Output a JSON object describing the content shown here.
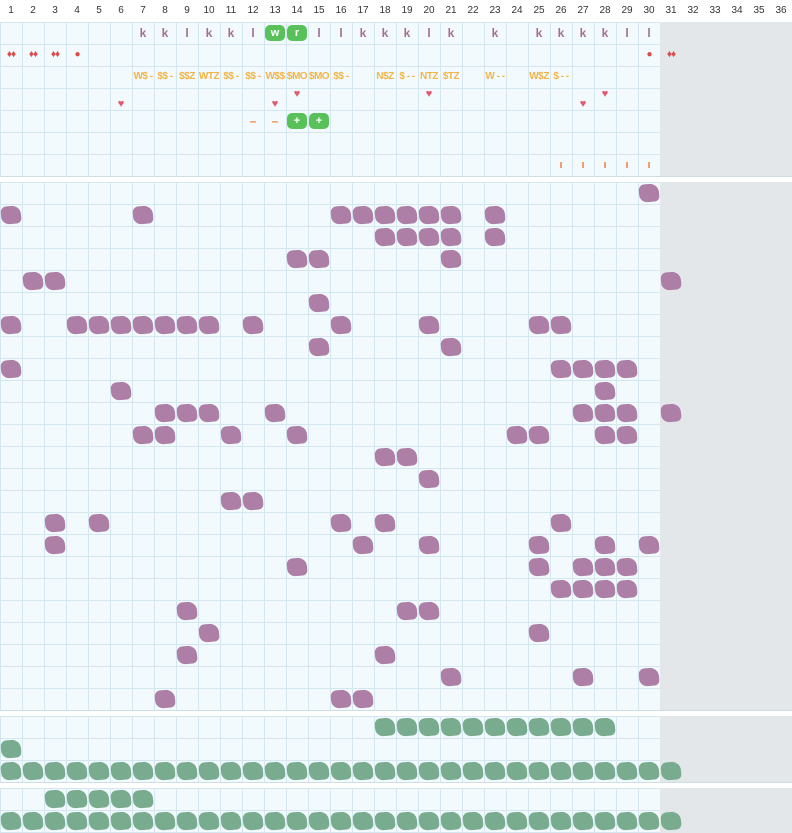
{
  "days": [
    "1",
    "2",
    "3",
    "4",
    "5",
    "6",
    "7",
    "8",
    "9",
    "10",
    "11",
    "12",
    "13",
    "14",
    "15",
    "16",
    "17",
    "18",
    "19",
    "20",
    "21",
    "22",
    "23",
    "24",
    "25",
    "26",
    "27",
    "28",
    "29",
    "30",
    "31",
    "32",
    "33",
    "34",
    "35",
    "36"
  ],
  "current_day": "30",
  "colors": {
    "grid_background": "#f2fafe",
    "grid_line": "#d4e6ef",
    "future_shade": "#e3e7ea",
    "purple_entry": "#ad7ea6",
    "green_entry": "#79ab8f",
    "letter_mark": "#a3708f",
    "letter_tag": "#59c15a",
    "segment_mark": "#f2b446",
    "heart_mark": "#e05b6f",
    "dash_mark": "#f08246",
    "symbol_mark": "#dd4a4a"
  },
  "letters_row": [
    {
      "day": 7,
      "text": "k"
    },
    {
      "day": 8,
      "text": "k"
    },
    {
      "day": 9,
      "text": "l"
    },
    {
      "day": 10,
      "text": "k"
    },
    {
      "day": 11,
      "text": "k"
    },
    {
      "day": 12,
      "text": "l"
    },
    {
      "day": 13,
      "text": "w",
      "tag": true
    },
    {
      "day": 14,
      "text": "r",
      "tag": true
    },
    {
      "day": 15,
      "text": "l"
    },
    {
      "day": 16,
      "text": "l"
    },
    {
      "day": 17,
      "text": "k"
    },
    {
      "day": 18,
      "text": "k"
    },
    {
      "day": 19,
      "text": "k"
    },
    {
      "day": 20,
      "text": "l"
    },
    {
      "day": 21,
      "text": "k"
    },
    {
      "day": 23,
      "text": "k"
    },
    {
      "day": 25,
      "text": "k"
    },
    {
      "day": 26,
      "text": "k"
    },
    {
      "day": 27,
      "text": "k"
    },
    {
      "day": 28,
      "text": "k"
    },
    {
      "day": 29,
      "text": "l"
    },
    {
      "day": 30,
      "text": "l"
    }
  ],
  "symbols_row": [
    {
      "day": 1,
      "text": "♦♦"
    },
    {
      "day": 2,
      "text": "♦♦"
    },
    {
      "day": 3,
      "text": "♦♦"
    },
    {
      "day": 4,
      "text": "●"
    },
    {
      "day": 30,
      "text": "●"
    },
    {
      "day": 31,
      "text": "♦♦"
    }
  ],
  "segments_row": [
    {
      "day": 7,
      "text": "W$ - "
    },
    {
      "day": 8,
      "text": "$$ - "
    },
    {
      "day": 9,
      "text": "$$Z"
    },
    {
      "day": 10,
      "text": "WTZ"
    },
    {
      "day": 11,
      "text": "$$ - "
    },
    {
      "day": 12,
      "text": "$$ - "
    },
    {
      "day": 13,
      "text": "W$$"
    },
    {
      "day": 14,
      "text": "$MO"
    },
    {
      "day": 15,
      "text": "$MO"
    },
    {
      "day": 16,
      "text": "$$ - "
    },
    {
      "day": 18,
      "text": "N$Z"
    },
    {
      "day": 19,
      "text": "$ - -"
    },
    {
      "day": 20,
      "text": "NTZ"
    },
    {
      "day": 21,
      "text": "$TZ"
    },
    {
      "day": 23,
      "text": "W - -"
    },
    {
      "day": 25,
      "text": "W$Z"
    },
    {
      "day": 26,
      "text": "$ - -"
    }
  ],
  "hearts_row": [
    {
      "day": 6,
      "row": 1,
      "text": "♥"
    },
    {
      "day": 13,
      "row": 1,
      "text": "♥"
    },
    {
      "day": 14,
      "row": 0,
      "text": "♥"
    },
    {
      "day": 20,
      "row": 0,
      "text": "♥"
    },
    {
      "day": 27,
      "row": 1,
      "text": "♥"
    },
    {
      "day": 28,
      "row": 0,
      "text": "♥"
    }
  ],
  "actions_row": [
    {
      "day": 12,
      "text": "–",
      "tag": false
    },
    {
      "day": 13,
      "text": "–",
      "tag": false
    },
    {
      "day": 14,
      "text": "+",
      "tag": true
    },
    {
      "day": 15,
      "text": "+",
      "tag": true
    }
  ],
  "ticks_row": [
    {
      "day": 26,
      "text": "ı"
    },
    {
      "day": 27,
      "text": "ı"
    },
    {
      "day": 28,
      "text": "ı"
    },
    {
      "day": 29,
      "text": "ı"
    },
    {
      "day": 30,
      "text": "ı"
    }
  ],
  "main_entries": [
    [
      30
    ],
    [
      1,
      7,
      16,
      17,
      18,
      19,
      20,
      21,
      23
    ],
    [
      18,
      19,
      20,
      21,
      23
    ],
    [
      14,
      15,
      21
    ],
    [
      2,
      3,
      31
    ],
    [
      15
    ],
    [
      1,
      4,
      5,
      6,
      7,
      8,
      9,
      10,
      12,
      16,
      20,
      25,
      26
    ],
    [
      15,
      21
    ],
    [
      1,
      26,
      27,
      28,
      29
    ],
    [
      6,
      28
    ],
    [
      8,
      9,
      10,
      13,
      27,
      28,
      29,
      31
    ],
    [
      7,
      8,
      11,
      14,
      24,
      25,
      28,
      29
    ],
    [
      18,
      19
    ],
    [
      20
    ],
    [
      11,
      12
    ],
    [
      3,
      5,
      16,
      18,
      26
    ],
    [
      3,
      17,
      20,
      25,
      28,
      30
    ],
    [
      14,
      25,
      27,
      28,
      29
    ],
    [
      26,
      27,
      28,
      29
    ],
    [
      9,
      19,
      20
    ],
    [
      10,
      25
    ],
    [
      9,
      18
    ],
    [
      21,
      27,
      30
    ],
    [
      8,
      16,
      17
    ]
  ],
  "green_entries_1": [
    [
      18,
      19,
      20,
      21,
      22,
      23,
      24,
      25,
      26,
      27,
      28
    ],
    [
      1
    ],
    [
      1,
      2,
      3,
      4,
      5,
      6,
      7,
      8,
      9,
      10,
      11,
      12,
      13,
      14,
      15,
      16,
      17,
      18,
      19,
      20,
      21,
      22,
      23,
      24,
      25,
      26,
      27,
      28,
      29,
      30,
      31
    ]
  ],
  "green_entries_2": [
    [
      3,
      4,
      5,
      6,
      7
    ],
    [
      1,
      2,
      3,
      4,
      5,
      6,
      7,
      8,
      9,
      10,
      11,
      12,
      13,
      14,
      15,
      16,
      17,
      18,
      19,
      20,
      21,
      22,
      23,
      24,
      25,
      26,
      27,
      28,
      29,
      30,
      31
    ]
  ]
}
